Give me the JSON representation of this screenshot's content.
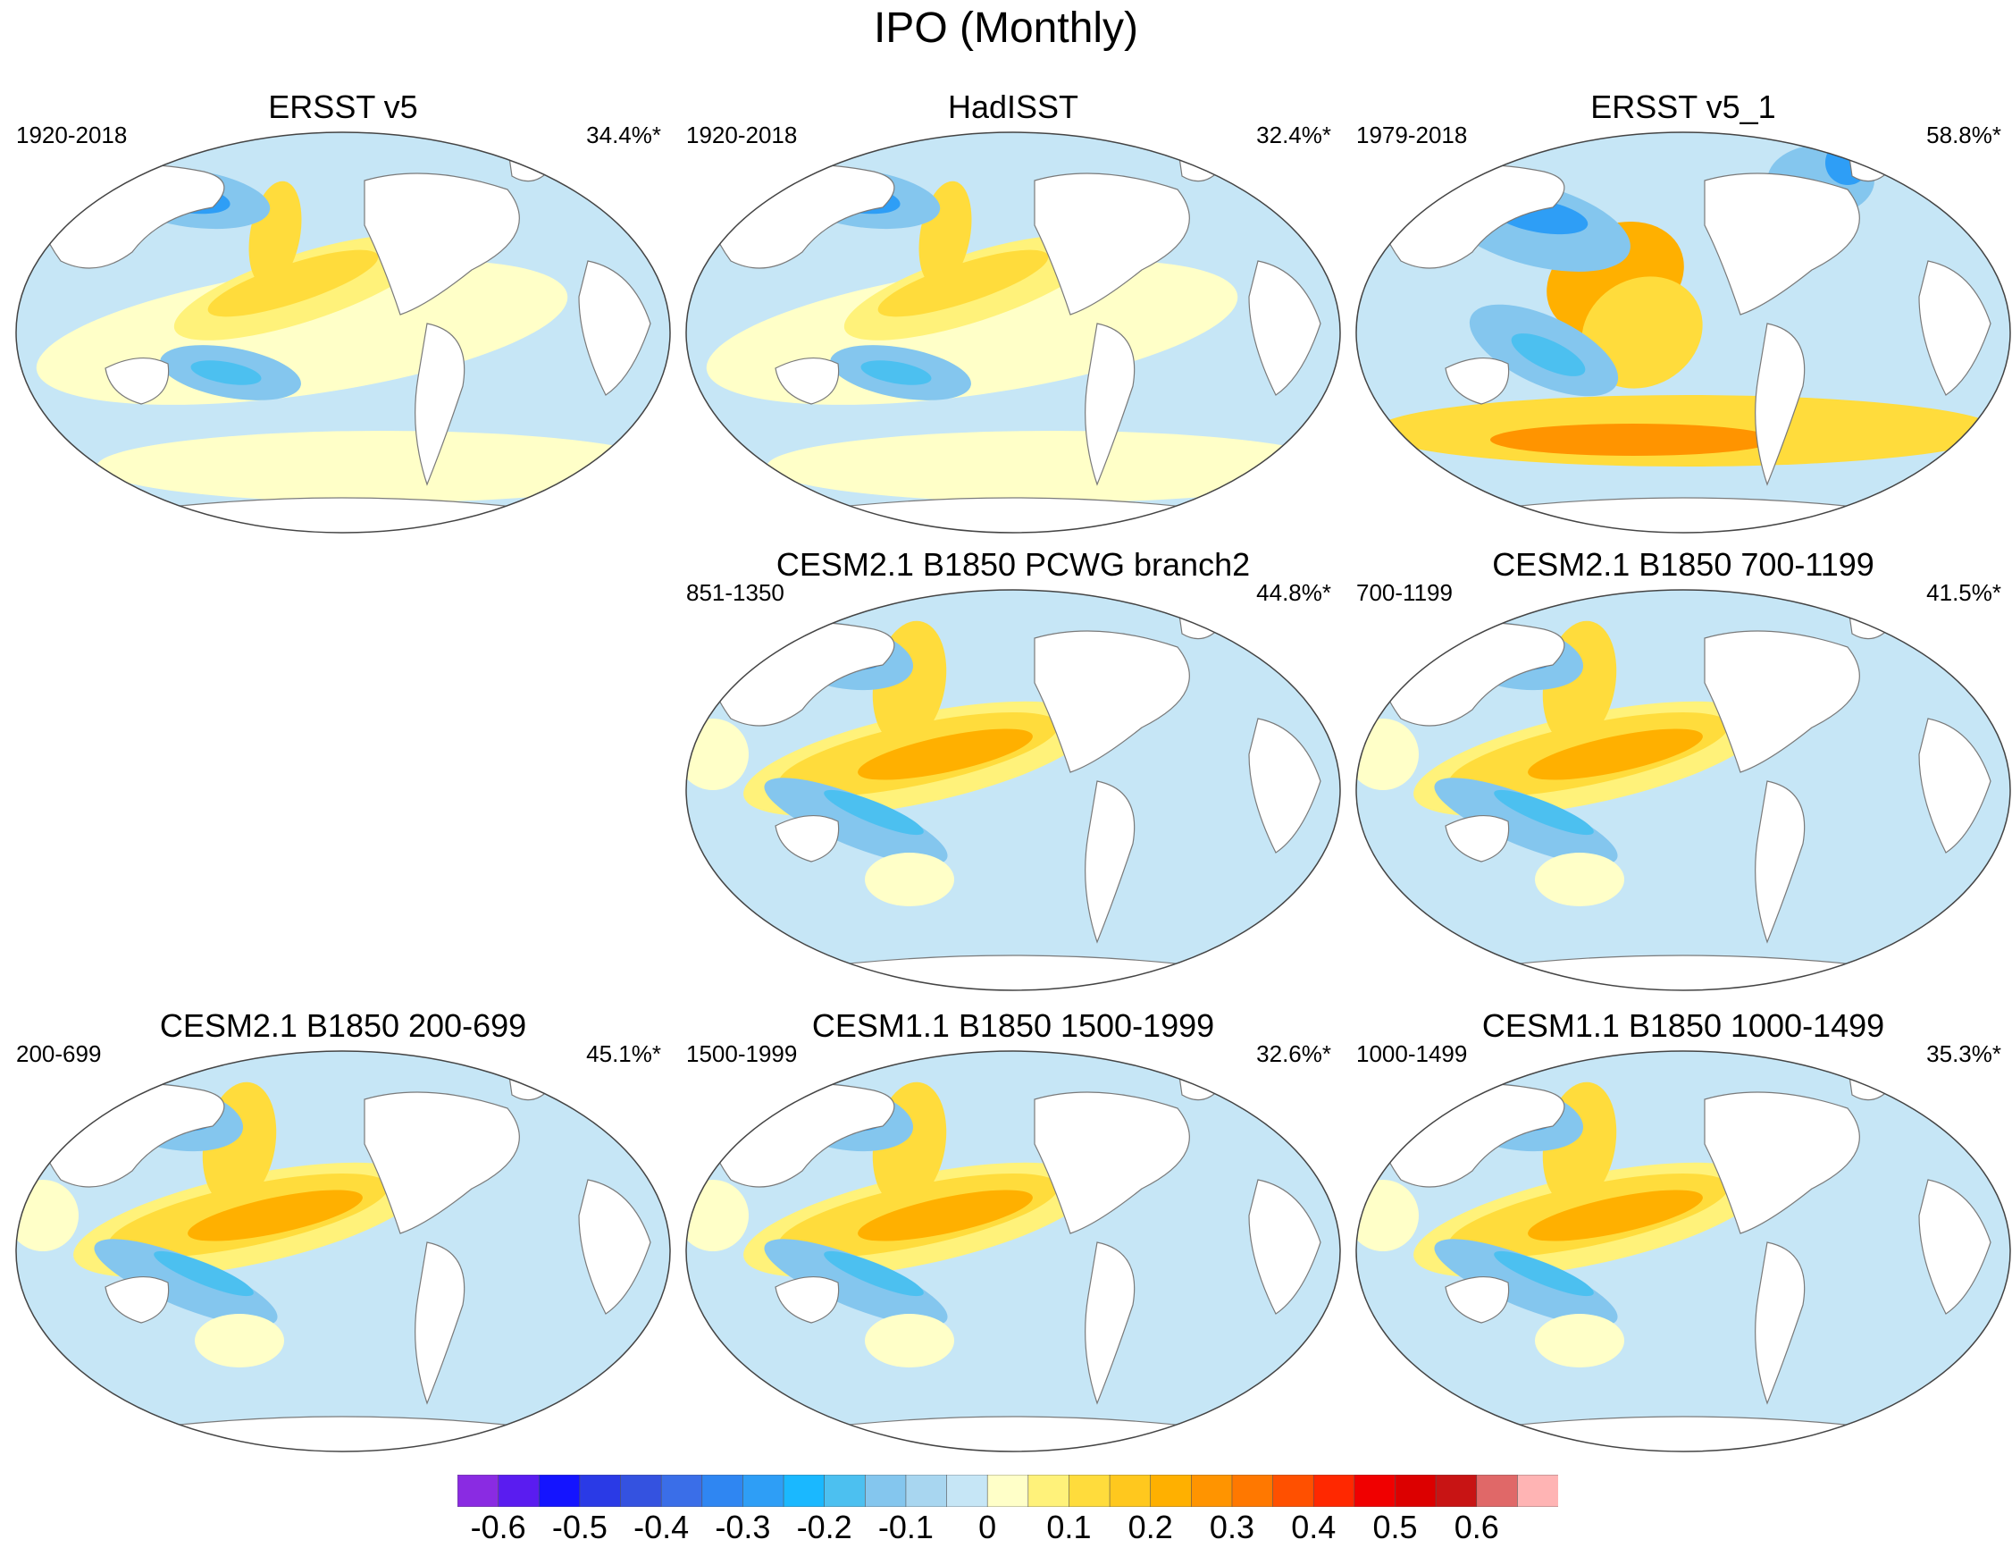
{
  "figure_title": "IPO (Monthly)",
  "panels": [
    {
      "title": "ERSST v5",
      "period": "1920-2018",
      "variance": "34.4%*",
      "style": "obs"
    },
    {
      "title": "HadISST",
      "period": "1920-2018",
      "variance": "32.4%*",
      "style": "obs"
    },
    {
      "title": "ERSST v5_1",
      "period": "1979-2018",
      "variance": "58.8%*",
      "style": "recent"
    },
    {
      "title": "CESM2.1 B1850 PCWG branch2",
      "period": "851-1350",
      "variance": "44.8%*",
      "style": "model"
    },
    {
      "title": "CESM2.1 B1850 700-1199",
      "period": "700-1199",
      "variance": "41.5%*",
      "style": "model"
    },
    {
      "title": "CESM2.1 B1850 200-699",
      "period": "200-699",
      "variance": "45.1%*",
      "style": "model"
    },
    {
      "title": "CESM1.1 B1850 1500-1999",
      "period": "1500-1999",
      "variance": "32.6%*",
      "style": "model"
    },
    {
      "title": "CESM1.1 B1850 1000-1499",
      "period": "1000-1499",
      "variance": "35.3%*",
      "style": "model"
    }
  ],
  "colorbar": {
    "labels": [
      "-0.6",
      "-0.5",
      "-0.4",
      "-0.3",
      "-0.2",
      "-0.1",
      "0",
      "0.1",
      "0.2",
      "0.3",
      "0.4",
      "0.5",
      "0.6"
    ],
    "colors": [
      "#8a2be2",
      "#5a1cf0",
      "#1414ff",
      "#2a3ae6",
      "#3452e0",
      "#3a6ee8",
      "#2f86f2",
      "#2e9ef6",
      "#1ab8ff",
      "#4cc0f0",
      "#84c6ee",
      "#a8d6f0",
      "#c6e6f6",
      "#ffffc8",
      "#fff27a",
      "#ffdc3c",
      "#ffc81e",
      "#ffb000",
      "#ff9400",
      "#ff7800",
      "#ff5000",
      "#ff2800",
      "#f00000",
      "#dc0000",
      "#c81414",
      "#e06868",
      "#ffb4b4"
    ]
  },
  "palette": {
    "land": "#ffffff",
    "coast": "#7a7a7a",
    "neutral_cool": "#c6e6f6",
    "pale_blue": "#a8d6f0",
    "light_blue": "#84c6ee",
    "blue": "#4cc0f0",
    "deep_blue": "#2e9ef6",
    "darkest_blue": "#3452e0",
    "pale_yellow": "#ffffc8",
    "yellow": "#fff27a",
    "gold": "#ffdc3c",
    "orange": "#ffb000",
    "deep_orange": "#ff9400",
    "red": "#ff5000"
  }
}
